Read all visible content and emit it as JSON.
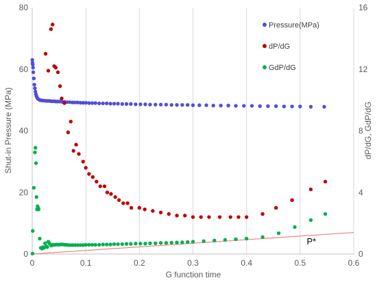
{
  "chart_data": {
    "type": "scatter",
    "xlabel": "G function time",
    "ylabel_left": "Shut-in Pressure (MPa)",
    "ylabel_right": "dP/dG, GdP/dG",
    "xlim": [
      0,
      0.6
    ],
    "ylim_left": [
      0,
      80
    ],
    "ylim_right": [
      0,
      16
    ],
    "x_ticks": [
      0,
      0.1,
      0.2,
      0.3,
      0.4,
      0.5,
      0.6
    ],
    "x_tick_labels": [
      "0",
      "0.1",
      "0.2",
      "0.3",
      "0.4",
      "0.5",
      "0.6"
    ],
    "y_left_ticks": [
      0,
      20,
      40,
      60,
      80
    ],
    "y_left_tick_labels": [
      "0",
      "20",
      "40",
      "60",
      "80"
    ],
    "y_right_ticks": [
      0,
      4,
      8,
      12,
      16
    ],
    "y_right_tick_labels": [
      "0",
      "4",
      "8",
      "12",
      "16"
    ],
    "grid": "vertical",
    "legend_position": "top-right",
    "series": [
      {
        "name": "Pressure(MPa)",
        "axis": "left",
        "color": "#4f4fd9",
        "x": [
          0.0002,
          0.0006,
          0.001,
          0.0015,
          0.002,
          0.003,
          0.004,
          0.005,
          0.006,
          0.007,
          0.008,
          0.009,
          0.01,
          0.012,
          0.014,
          0.016,
          0.018,
          0.02,
          0.023,
          0.026,
          0.029,
          0.032,
          0.035,
          0.038,
          0.041,
          0.044,
          0.047,
          0.05,
          0.053,
          0.056,
          0.06,
          0.065,
          0.07,
          0.075,
          0.08,
          0.085,
          0.09,
          0.095,
          0.1,
          0.106,
          0.112,
          0.118,
          0.125,
          0.132,
          0.139,
          0.146,
          0.153,
          0.16,
          0.168,
          0.176,
          0.184,
          0.193,
          0.202,
          0.211,
          0.22,
          0.23,
          0.24,
          0.25,
          0.26,
          0.27,
          0.28,
          0.29,
          0.3,
          0.312,
          0.325,
          0.338,
          0.352,
          0.366,
          0.38,
          0.395,
          0.41,
          0.425,
          0.44,
          0.455,
          0.47,
          0.485,
          0.5,
          0.52,
          0.545
        ],
        "y": [
          63,
          62,
          61.5,
          60.5,
          59,
          57,
          55,
          53.8,
          52.7,
          51.8,
          51.2,
          50.8,
          50.5,
          50.2,
          50,
          49.9,
          49.9,
          49.8,
          49.8,
          49.7,
          49.7,
          49.7,
          49.6,
          49.6,
          49.6,
          49.5,
          49.5,
          49.5,
          49.5,
          49.4,
          49.4,
          49.3,
          49.3,
          49.2,
          49.2,
          49.2,
          49.1,
          49.1,
          49.1,
          49,
          49,
          49,
          48.9,
          48.9,
          48.9,
          48.8,
          48.8,
          48.8,
          48.7,
          48.7,
          48.7,
          48.6,
          48.6,
          48.6,
          48.5,
          48.5,
          48.5,
          48.5,
          48.4,
          48.4,
          48.4,
          48.4,
          48.3,
          48.3,
          48.3,
          48.2,
          48.2,
          48.2,
          48.1,
          48.1,
          48.1,
          48,
          48,
          48,
          47.9,
          47.9,
          47.9,
          47.8,
          47.8
        ]
      },
      {
        "name": "dP/dG",
        "axis": "right",
        "color": "#c00000",
        "x": [
          0.025,
          0.03,
          0.035,
          0.038,
          0.041,
          0.044,
          0.048,
          0.052,
          0.055,
          0.06,
          0.067,
          0.072,
          0.077,
          0.082,
          0.087,
          0.095,
          0.1,
          0.106,
          0.113,
          0.12,
          0.127,
          0.135,
          0.14,
          0.147,
          0.155,
          0.162,
          0.17,
          0.178,
          0.185,
          0.2,
          0.21,
          0.225,
          0.24,
          0.255,
          0.27,
          0.285,
          0.3,
          0.315,
          0.33,
          0.35,
          0.37,
          0.385,
          0.4,
          0.43,
          0.455,
          0.485,
          0.52,
          0.547
        ],
        "y": [
          13,
          11.9,
          14.6,
          14.9,
          12.2,
          12.1,
          11.8,
          10.9,
          10.1,
          9.8,
          7.9,
          8.6,
          6.7,
          7.1,
          6.5,
          6.0,
          5.6,
          5.2,
          5.0,
          4.7,
          4.4,
          4.4,
          4.0,
          3.9,
          3.7,
          3.5,
          3.3,
          3.3,
          3.0,
          3.0,
          2.9,
          2.8,
          2.7,
          2.6,
          2.5,
          2.5,
          2.4,
          2.4,
          2.4,
          2.4,
          2.4,
          2.4,
          2.4,
          2.6,
          3.0,
          3.5,
          4.2,
          4.7
        ]
      },
      {
        "name": "GdP/dG",
        "axis": "right",
        "color": "#00b050",
        "x": [
          0.0005,
          0.001,
          0.003,
          0.005,
          0.006,
          0.007,
          0.008,
          0.009,
          0.01,
          0.011,
          0.012,
          0.014,
          0.016,
          0.018,
          0.02,
          0.022,
          0.024,
          0.026,
          0.028,
          0.03,
          0.032,
          0.034,
          0.036,
          0.038,
          0.04,
          0.043,
          0.046,
          0.049,
          0.052,
          0.055,
          0.058,
          0.061,
          0.064,
          0.068,
          0.072,
          0.076,
          0.08,
          0.085,
          0.09,
          0.095,
          0.1,
          0.106,
          0.112,
          0.118,
          0.125,
          0.132,
          0.139,
          0.146,
          0.153,
          0.16,
          0.168,
          0.176,
          0.184,
          0.193,
          0.202,
          0.211,
          0.22,
          0.23,
          0.24,
          0.25,
          0.26,
          0.27,
          0.28,
          0.29,
          0.3,
          0.32,
          0.34,
          0.36,
          0.38,
          0.4,
          0.43,
          0.46,
          0.49,
          0.52,
          0.547
        ],
        "y": [
          0.03,
          1.5,
          4.3,
          6.6,
          6.9,
          5.9,
          3.7,
          2.9,
          3.1,
          3.0,
          2.9,
          1.0,
          0.4,
          0.35,
          0.45,
          0.4,
          0.7,
          0.5,
          0.45,
          0.8,
          0.7,
          0.6,
          0.55,
          0.6,
          0.6,
          0.6,
          0.62,
          0.6,
          0.62,
          0.62,
          0.62,
          0.6,
          0.6,
          0.58,
          0.58,
          0.58,
          0.58,
          0.58,
          0.58,
          0.58,
          0.6,
          0.6,
          0.6,
          0.6,
          0.6,
          0.62,
          0.62,
          0.62,
          0.64,
          0.64,
          0.64,
          0.66,
          0.66,
          0.68,
          0.68,
          0.68,
          0.7,
          0.7,
          0.72,
          0.72,
          0.74,
          0.75,
          0.76,
          0.78,
          0.8,
          0.84,
          0.88,
          0.92,
          0.96,
          1.0,
          1.1,
          1.35,
          1.75,
          2.2,
          2.6
        ]
      }
    ],
    "trend_line": {
      "axis": "right",
      "color": "#f08080",
      "x": [
        0,
        0.6
      ],
      "y": [
        0,
        1.4
      ]
    },
    "annotations": [
      {
        "text": "P*",
        "x": 0.52,
        "y_right": 0.8
      }
    ]
  }
}
